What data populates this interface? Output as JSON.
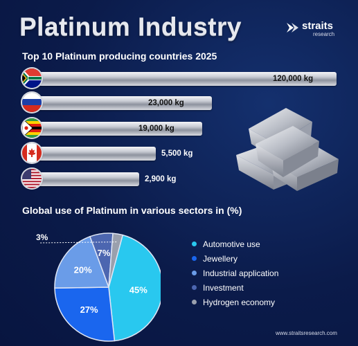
{
  "header": {
    "title": "Platinum Industry",
    "logo_word": "straits",
    "logo_sub": "research"
  },
  "footer": {
    "url": "www.straitsresearch.com"
  },
  "colors": {
    "background": "#0b1b4a",
    "automotive": "#29c8ef",
    "jewellery": "#1a66ee",
    "industrial": "#6a9ce8",
    "investment": "#4c66b0",
    "hydrogen": "#9aa0ad"
  },
  "chart_data": [
    {
      "type": "bar",
      "orientation": "horizontal",
      "title": "Top 10 Platinum producing countries 2025",
      "categories": [
        "South Africa flag",
        "Russia flag",
        "Zimbabwe flag",
        "Canada flag",
        "USA flag"
      ],
      "values": [
        120000,
        23000,
        19000,
        5500,
        2900
      ],
      "value_labels": [
        "120,000 kg",
        "23,000 kg",
        "19,000 kg",
        "5,500 kg",
        "2,900 kg"
      ],
      "unit": "kg"
    },
    {
      "type": "pie",
      "title": "Global use of Platinum in various sectors in (%)",
      "categories": [
        "Automotive use",
        "Jewellery",
        "Industrial application",
        "Investment",
        "Hydrogen economy"
      ],
      "values": [
        45,
        27,
        20,
        7,
        3
      ],
      "value_labels": [
        "45%",
        "27%",
        "20%",
        "7%",
        "3%"
      ],
      "colors": [
        "#29c8ef",
        "#1a66ee",
        "#6a9ce8",
        "#4c66b0",
        "#9aa0ad"
      ],
      "legend_position": "right"
    }
  ]
}
